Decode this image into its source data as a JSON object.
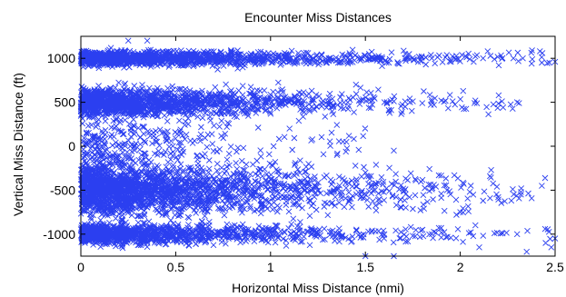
{
  "chart_data": {
    "type": "scatter",
    "title": "Encounter Miss Distances",
    "xlabel": "Horizontal Miss Distance (nmi)",
    "ylabel": "Vertical Miss Distance (ft)",
    "xlim": [
      0,
      2.5
    ],
    "ylim": [
      -1250,
      1250
    ],
    "xticks": [
      0,
      0.5,
      1,
      1.5,
      2,
      2.5
    ],
    "xtick_labels": [
      "0",
      "0.5",
      "1",
      "1.5",
      "2",
      "2.5"
    ],
    "yticks": [
      -1000,
      -500,
      0,
      500,
      1000
    ],
    "ytick_labels": [
      "-1000",
      "-500",
      "0",
      "500",
      "1000"
    ],
    "grid": false,
    "legend": "none",
    "marker": "x",
    "marker_color": "#2b3ff0",
    "clusters": [
      {
        "y_center": 1000,
        "y_spread": 45,
        "x_min": 0,
        "x_max": 2.5,
        "density": "high near 0, thinning toward 2.5"
      },
      {
        "y_center": 500,
        "y_spread": 80,
        "x_min": 0,
        "x_max": 2.35,
        "density": "high near 0, thinning toward 2"
      },
      {
        "y_center": 0,
        "y_spread": 180,
        "x_min": 0,
        "x_max": 1.5,
        "density": "sparse"
      },
      {
        "y_center": -500,
        "y_spread": 140,
        "x_min": 0,
        "x_max": 2.45,
        "density": "very high near 0, thinning toward 2"
      },
      {
        "y_center": -1000,
        "y_spread": 60,
        "x_min": 0,
        "x_max": 2.5,
        "density": "high near 0, thinning toward 2.5"
      }
    ],
    "points": [
      [
        0.02,
        960
      ],
      [
        0.1,
        1020
      ],
      [
        0.25,
        1200
      ],
      [
        0.35,
        1200
      ],
      [
        1.55,
        1000
      ],
      [
        1.72,
        1000
      ],
      [
        1.85,
        1000
      ],
      [
        1.95,
        980
      ],
      [
        2.05,
        990
      ],
      [
        2.12,
        1000
      ],
      [
        2.18,
        990
      ],
      [
        2.22,
        995
      ],
      [
        2.28,
        1000
      ],
      [
        2.33,
        1000
      ],
      [
        2.38,
        990
      ],
      [
        2.43,
        950
      ],
      [
        2.47,
        950
      ],
      [
        2.5,
        960
      ],
      [
        1.45,
        700
      ],
      [
        1.6,
        500
      ],
      [
        1.65,
        510
      ],
      [
        1.75,
        510
      ],
      [
        1.8,
        490
      ],
      [
        1.9,
        520
      ],
      [
        1.96,
        510
      ],
      [
        2.3,
        500
      ],
      [
        2.31,
        490
      ],
      [
        1.4,
        50
      ],
      [
        1.35,
        -100
      ],
      [
        1.1,
        200
      ],
      [
        1.65,
        -50
      ],
      [
        1.2,
        -200
      ],
      [
        1.5,
        -300
      ],
      [
        1.55,
        -500
      ],
      [
        1.7,
        -510
      ],
      [
        1.85,
        -490
      ],
      [
        1.9,
        -540
      ],
      [
        1.93,
        -500
      ],
      [
        2.05,
        -520
      ],
      [
        2.12,
        -620
      ],
      [
        2.2,
        -580
      ],
      [
        2.32,
        -550
      ],
      [
        2.43,
        -450
      ],
      [
        1.6,
        -1000
      ],
      [
        1.75,
        -1020
      ],
      [
        1.85,
        -1000
      ],
      [
        1.95,
        -1040
      ],
      [
        2.1,
        -1150
      ],
      [
        2.3,
        -1000
      ],
      [
        2.35,
        -1200
      ],
      [
        2.45,
        -1100
      ],
      [
        2.48,
        -1150
      ],
      [
        2.5,
        -1050
      ],
      [
        2.0,
        -750
      ],
      [
        1.98,
        -780
      ],
      [
        2.08,
        -900
      ],
      [
        2.18,
        -990
      ],
      [
        1.5,
        -1250
      ],
      [
        1.65,
        -1250
      ]
    ]
  }
}
